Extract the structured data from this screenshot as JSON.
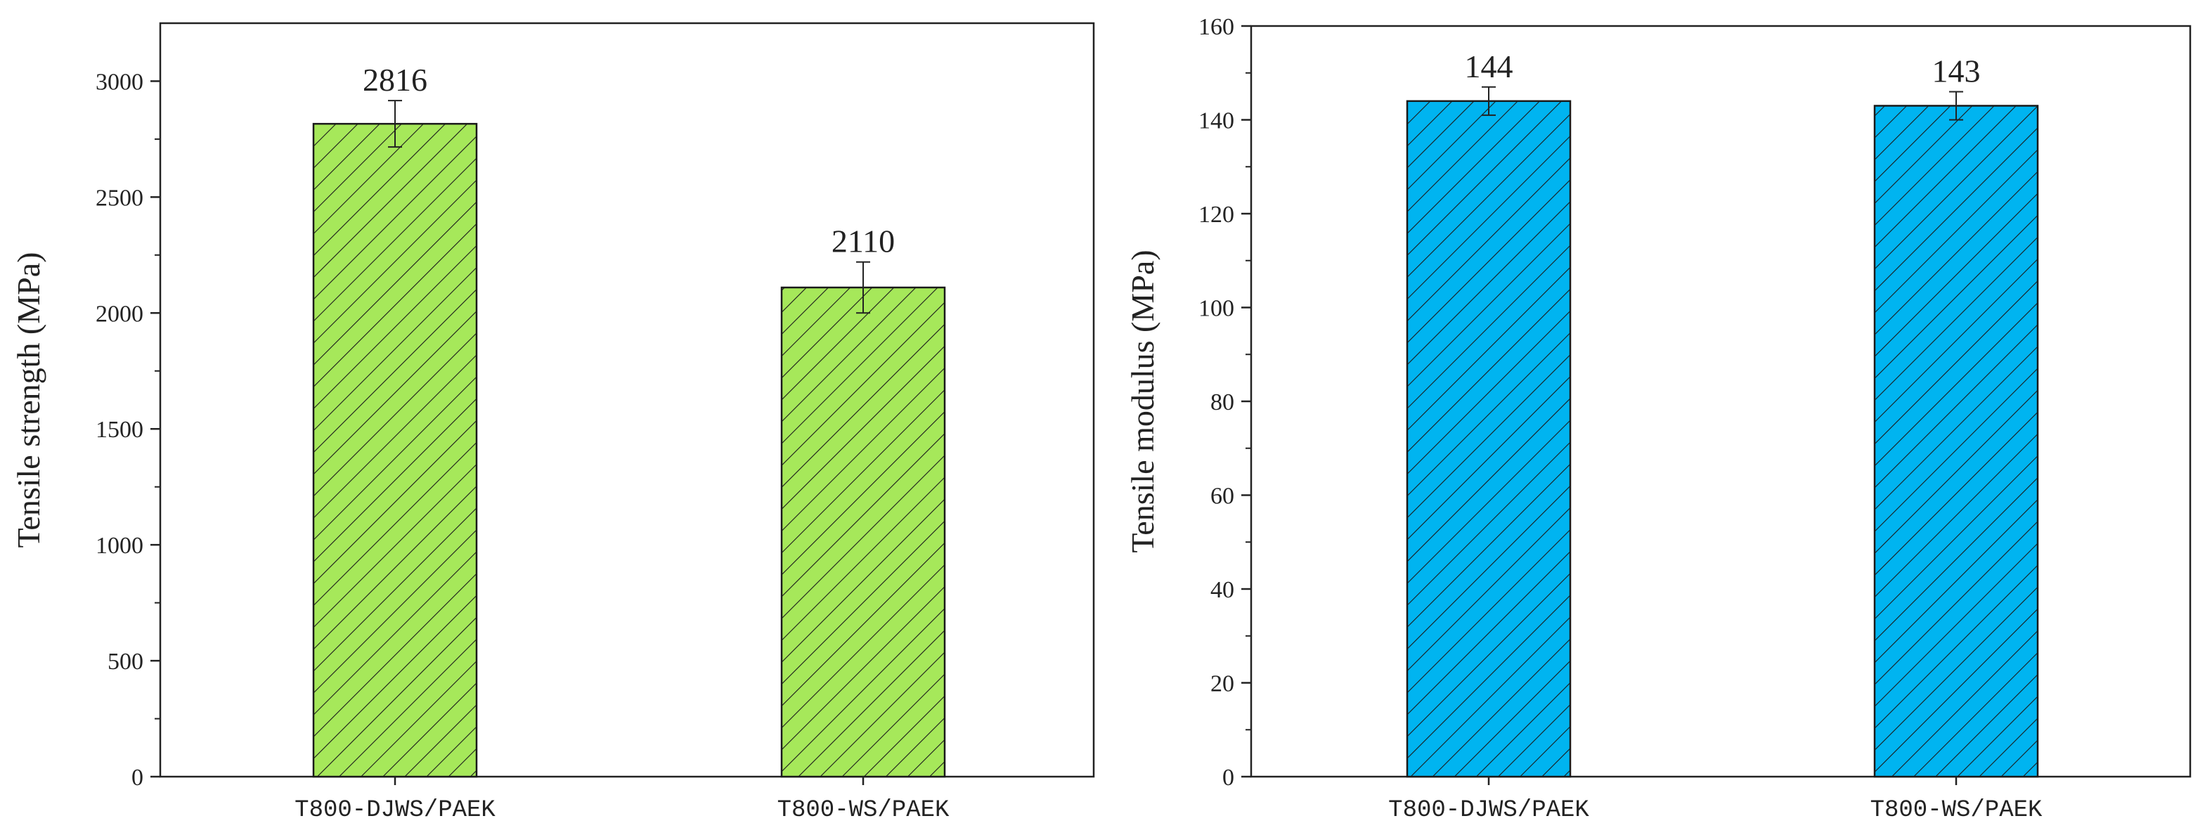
{
  "chart_data": [
    {
      "type": "bar",
      "title": "",
      "xlabel": "",
      "ylabel": "Tensile strength (MPa)",
      "categories": [
        "T800-DJWS/PAEK",
        "T800-WS/PAEK"
      ],
      "values": [
        2816,
        2110
      ],
      "errors": [
        100,
        110
      ],
      "data_labels": [
        "2816",
        "2110"
      ],
      "ylim": [
        0,
        3250
      ],
      "yticks": [
        0,
        500,
        1000,
        1500,
        2000,
        2500,
        3000
      ],
      "ytick_labels": [
        "0",
        "500",
        "1000",
        "1500",
        "2000",
        "2500",
        "3000"
      ],
      "bar_color": "#a6e85a",
      "hatch": "diagonal",
      "grid": false,
      "legend": "none"
    },
    {
      "type": "bar",
      "title": "",
      "xlabel": "",
      "ylabel": "Tensile modulus (MPa)",
      "categories": [
        "T800-DJWS/PAEK",
        "T800-WS/PAEK"
      ],
      "values": [
        144,
        143
      ],
      "errors": [
        3,
        3
      ],
      "data_labels": [
        "144",
        "143"
      ],
      "ylim": [
        0,
        160
      ],
      "yticks": [
        0,
        20,
        40,
        60,
        80,
        100,
        120,
        140,
        160
      ],
      "ytick_labels": [
        "0",
        "20",
        "40",
        "60",
        "80",
        "100",
        "120",
        "140",
        "160"
      ],
      "bar_color": "#00b4f0",
      "hatch": "diagonal",
      "grid": false,
      "legend": "none"
    }
  ]
}
